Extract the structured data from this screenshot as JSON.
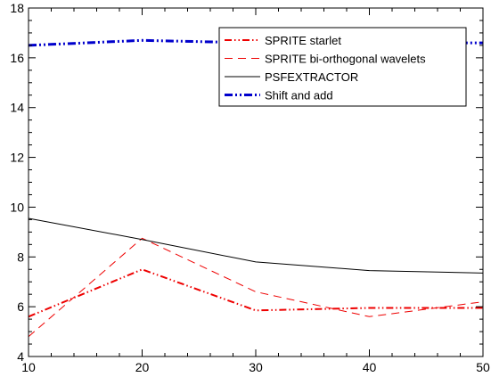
{
  "chart_data": {
    "type": "line",
    "xlim": [
      10,
      50
    ],
    "ylim": [
      4,
      18
    ],
    "x_ticks": [
      10,
      20,
      30,
      40,
      50
    ],
    "y_ticks": [
      4,
      6,
      8,
      10,
      12,
      14,
      16,
      18
    ],
    "x_minor_step": 2,
    "y_minor_step": 0.5,
    "grid": false,
    "legend_position": "top-right",
    "series": [
      {
        "name": "SPRITE starlet",
        "color": "#ee0000",
        "style": "dash-dot-dot",
        "x": [
          10,
          20,
          30,
          40,
          50
        ],
        "y": [
          5.6,
          7.5,
          5.85,
          5.95,
          5.95
        ]
      },
      {
        "name": "SPRITE bi-orthogonal wavelets",
        "color": "#ee0000",
        "style": "dashed",
        "x": [
          10,
          20,
          30,
          40,
          50
        ],
        "y": [
          4.8,
          8.75,
          6.6,
          5.6,
          6.2
        ]
      },
      {
        "name": "PSFEXTRACTOR",
        "color": "#000000",
        "style": "solid",
        "x": [
          10,
          20,
          30,
          40,
          50
        ],
        "y": [
          9.55,
          8.7,
          7.8,
          7.45,
          7.35
        ]
      },
      {
        "name": "Shift and add",
        "color": "#0000cc",
        "style": "dash-dot-dot-thick",
        "x": [
          10,
          20,
          30,
          40,
          50
        ],
        "y": [
          16.5,
          16.7,
          16.6,
          16.6,
          16.6
        ]
      }
    ]
  }
}
